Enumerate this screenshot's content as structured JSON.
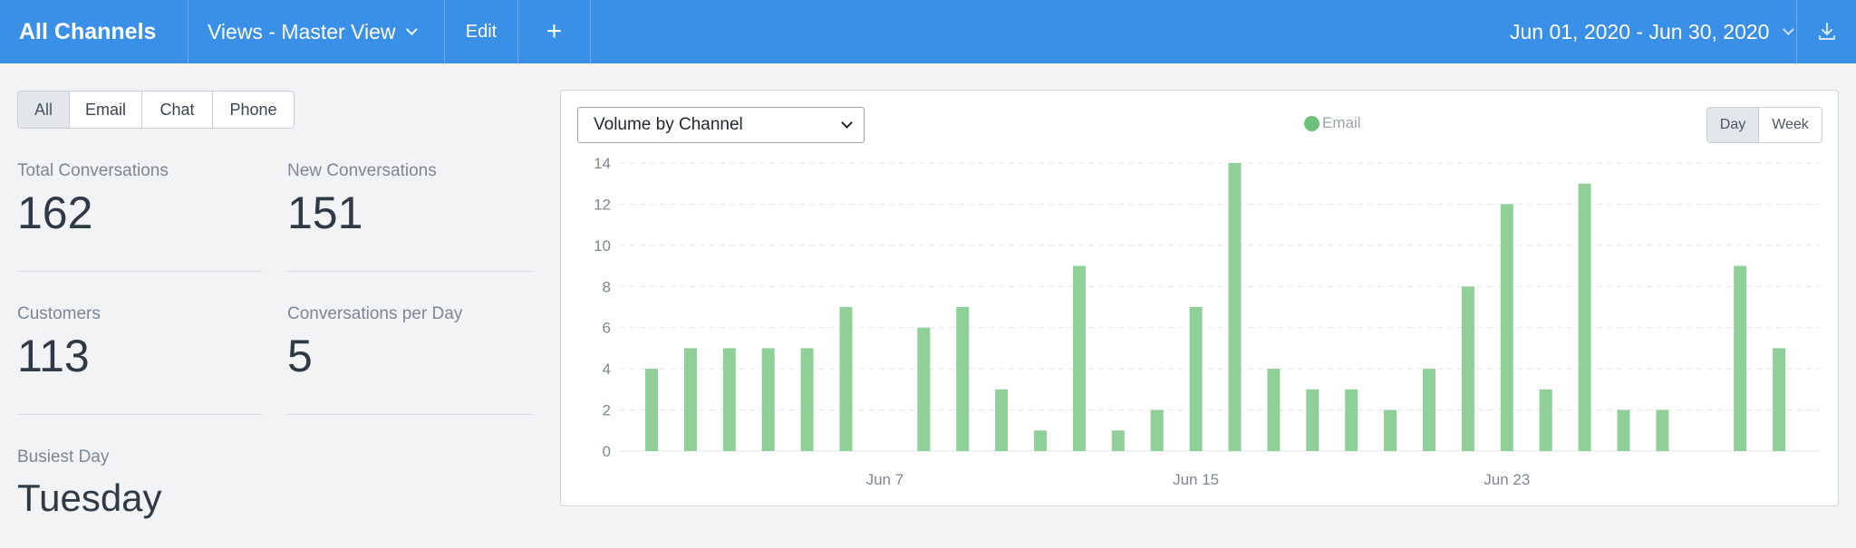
{
  "topbar": {
    "title": "All Channels",
    "views_label": "Views - Master View",
    "edit_label": "Edit",
    "add_label": "+",
    "date_range": "Jun 01, 2020 - Jun 30, 2020"
  },
  "filters": [
    {
      "label": "All",
      "active": true
    },
    {
      "label": "Email",
      "active": false
    },
    {
      "label": "Chat",
      "active": false
    },
    {
      "label": "Phone",
      "active": false
    }
  ],
  "stats": {
    "total_conversations": {
      "label": "Total Conversations",
      "value": "162"
    },
    "new_conversations": {
      "label": "New Conversations",
      "value": "151"
    },
    "customers": {
      "label": "Customers",
      "value": "113"
    },
    "per_day": {
      "label": "Conversations per Day",
      "value": "5"
    },
    "busiest_day": {
      "label": "Busiest Day",
      "value": "Tuesday"
    }
  },
  "chart_panel": {
    "select_value": "Volume by Channel",
    "toggle": [
      {
        "label": "Day",
        "active": true
      },
      {
        "label": "Week",
        "active": false
      }
    ]
  },
  "colors": {
    "topbar": "#3a8fe6",
    "bar": "#8fcf98",
    "legend_dot": "#6cc17a"
  },
  "chart_data": {
    "type": "bar",
    "x": [
      "2020-06-01",
      "2020-06-02",
      "2020-06-03",
      "2020-06-04",
      "2020-06-05",
      "2020-06-06",
      "2020-06-07",
      "2020-06-08",
      "2020-06-09",
      "2020-06-10",
      "2020-06-11",
      "2020-06-12",
      "2020-06-13",
      "2020-06-14",
      "2020-06-15",
      "2020-06-16",
      "2020-06-17",
      "2020-06-18",
      "2020-06-19",
      "2020-06-20",
      "2020-06-21",
      "2020-06-22",
      "2020-06-23",
      "2020-06-24",
      "2020-06-25",
      "2020-06-26",
      "2020-06-27",
      "2020-06-28",
      "2020-06-29",
      "2020-06-30"
    ],
    "series": [
      {
        "name": "Email",
        "values": [
          4,
          5,
          5,
          5,
          5,
          7,
          0,
          6,
          7,
          3,
          1,
          9,
          1,
          2,
          7,
          14,
          4,
          3,
          3,
          2,
          4,
          8,
          12,
          3,
          13,
          2,
          2,
          0,
          9,
          5
        ]
      }
    ],
    "x_ticks": [
      {
        "index": 6,
        "label": "Jun 7"
      },
      {
        "index": 14,
        "label": "Jun 15"
      },
      {
        "index": 22,
        "label": "Jun 23"
      }
    ],
    "y_ticks": [
      0,
      2,
      4,
      6,
      8,
      10,
      12,
      14
    ],
    "ylim": [
      0,
      14
    ],
    "grid": true,
    "legend": "top-center"
  }
}
